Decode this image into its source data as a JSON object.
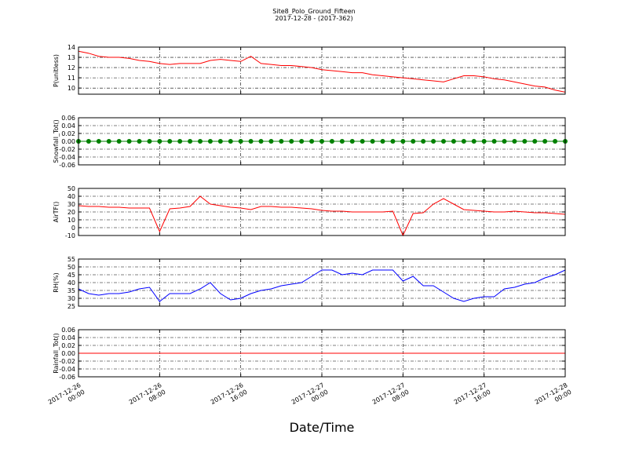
{
  "chart_data": {
    "type": "line",
    "title": "Site8_Polo_Ground_Fifteen",
    "subtitle": "2017-12-28 - (2017-362)",
    "xlabel": "Date/Time",
    "grid": true,
    "xlim": [
      "2017-12-26 00:00",
      "2017-12-28 00:00"
    ],
    "xticks": [
      "2017-12-26 00:00",
      "2017-12-26 08:00",
      "2017-12-26 16:00",
      "2017-12-27 00:00",
      "2017-12-27 08:00",
      "2017-12-27 16:00",
      "2017-12-28 00:00"
    ],
    "x": [
      "2017-12-26 00:00",
      "2017-12-26 01:00",
      "2017-12-26 02:00",
      "2017-12-26 03:00",
      "2017-12-26 04:00",
      "2017-12-26 05:00",
      "2017-12-26 06:00",
      "2017-12-26 07:00",
      "2017-12-26 08:00",
      "2017-12-26 09:00",
      "2017-12-26 10:00",
      "2017-12-26 11:00",
      "2017-12-26 12:00",
      "2017-12-26 13:00",
      "2017-12-26 14:00",
      "2017-12-26 15:00",
      "2017-12-26 16:00",
      "2017-12-26 17:00",
      "2017-12-26 18:00",
      "2017-12-26 19:00",
      "2017-12-26 20:00",
      "2017-12-26 21:00",
      "2017-12-26 22:00",
      "2017-12-26 23:00",
      "2017-12-27 00:00",
      "2017-12-27 01:00",
      "2017-12-27 02:00",
      "2017-12-27 03:00",
      "2017-12-27 04:00",
      "2017-12-27 05:00",
      "2017-12-27 06:00",
      "2017-12-27 07:00",
      "2017-12-27 08:00",
      "2017-12-27 09:00",
      "2017-12-27 10:00",
      "2017-12-27 11:00",
      "2017-12-27 12:00",
      "2017-12-27 13:00",
      "2017-12-27 14:00",
      "2017-12-27 15:00",
      "2017-12-27 16:00",
      "2017-12-27 17:00",
      "2017-12-27 18:00",
      "2017-12-27 19:00",
      "2017-12-27 20:00",
      "2017-12-27 21:00",
      "2017-12-27 22:00",
      "2017-12-27 23:00",
      "2017-12-28 00:00"
    ],
    "panels": [
      {
        "ylabel": "P(unitless)",
        "color": "#ff0000",
        "ylim": [
          9.4,
          14
        ],
        "yticks": [
          10,
          11,
          12,
          13,
          14
        ],
        "values": [
          13.6,
          13.4,
          13.1,
          13.0,
          13.0,
          12.9,
          12.7,
          12.6,
          12.4,
          12.3,
          12.4,
          12.4,
          12.4,
          12.7,
          12.8,
          12.7,
          12.6,
          13.1,
          12.4,
          12.3,
          12.2,
          12.2,
          12.1,
          12.0,
          11.8,
          11.7,
          11.6,
          11.5,
          11.5,
          11.3,
          11.2,
          11.1,
          11.0,
          10.9,
          10.8,
          10.7,
          10.6,
          10.9,
          11.2,
          11.2,
          11.1,
          10.9,
          10.8,
          10.6,
          10.4,
          10.2,
          10.1,
          9.8,
          9.6
        ]
      },
      {
        "ylabel": "Snowfall_Tot()",
        "color": "#008000",
        "marker": "o",
        "ylim": [
          -0.06,
          0.06
        ],
        "yticks": [
          -0.06,
          -0.04,
          -0.02,
          {
            "value": 0,
            "label": "0.00"
          },
          0.02,
          0.04,
          0.06
        ],
        "values": [
          0,
          0,
          0,
          0,
          0,
          0,
          0,
          0,
          0,
          0,
          0,
          0,
          0,
          0,
          0,
          0,
          0,
          0,
          0,
          0,
          0,
          0,
          0,
          0,
          0,
          0,
          0,
          0,
          0,
          0,
          0,
          0,
          0,
          0,
          0,
          0,
          0,
          0,
          0,
          0,
          0,
          0,
          0,
          0,
          0,
          0,
          0,
          0,
          0
        ]
      },
      {
        "ylabel": "AirTF()",
        "color": "#ff0000",
        "ylim": [
          -10,
          50
        ],
        "yticks": [
          -10,
          0,
          10,
          20,
          30,
          40,
          50
        ],
        "values": [
          28,
          27,
          27,
          26,
          26,
          25,
          25,
          25,
          -5,
          24,
          25,
          27,
          40,
          30,
          28,
          26,
          25,
          23,
          27,
          27,
          26,
          26,
          25,
          24,
          22,
          21,
          21,
          20,
          20,
          20,
          20,
          21,
          -10,
          18,
          19,
          30,
          37,
          30,
          23,
          22,
          21,
          20,
          20,
          21,
          20,
          19,
          19,
          18,
          17
        ]
      },
      {
        "ylabel": "RH(%)",
        "color": "#0000ff",
        "ylim": [
          25,
          55
        ],
        "yticks": [
          25,
          30,
          35,
          40,
          45,
          50,
          55
        ],
        "values": [
          36,
          33,
          32,
          33,
          33,
          34,
          36,
          37,
          28,
          33,
          33,
          33,
          36,
          40,
          33,
          29,
          30,
          33,
          35,
          36,
          38,
          39,
          40,
          44,
          48,
          48,
          45,
          46,
          45,
          48,
          48,
          48,
          41,
          44,
          38,
          38,
          34,
          30,
          28,
          30,
          31,
          31,
          36,
          37,
          39,
          40,
          43,
          45,
          48
        ]
      },
      {
        "ylabel": "Rainfall_Tot()",
        "color": "#ff0000",
        "ylim": [
          -0.06,
          0.06
        ],
        "yticks": [
          -0.06,
          -0.04,
          -0.02,
          {
            "value": 0,
            "label": "0.00"
          },
          0.02,
          0.04,
          0.06
        ],
        "values": [
          0,
          0,
          0,
          0,
          0,
          0,
          0,
          0,
          0,
          0,
          0,
          0,
          0,
          0,
          0,
          0,
          0,
          0,
          0,
          0,
          0,
          0,
          0,
          0,
          0,
          0,
          0,
          0,
          0,
          0,
          0,
          0,
          0,
          0,
          0,
          0,
          0,
          0,
          0,
          0,
          0,
          0,
          0,
          0,
          0,
          0,
          0,
          0,
          0
        ]
      }
    ]
  }
}
